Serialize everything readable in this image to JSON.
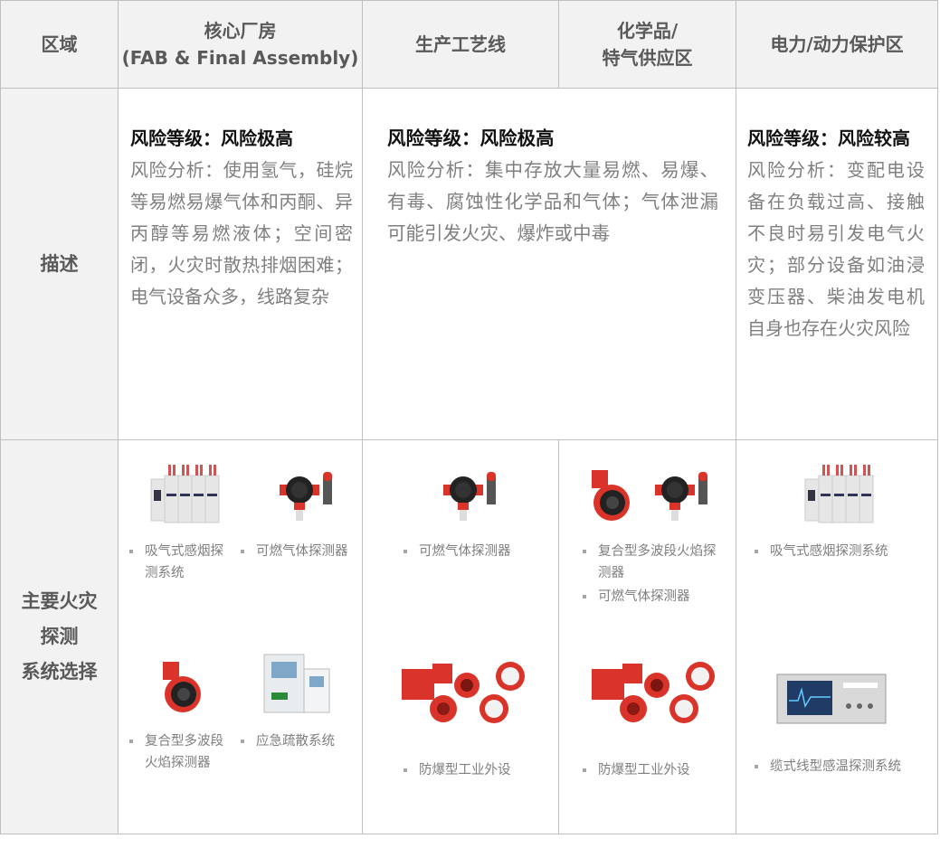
{
  "header": {
    "region": "区域",
    "columns": [
      {
        "title": "核心厂房",
        "subtitle": "(FAB & Final Assembly)"
      },
      {
        "title": "生产工艺线"
      },
      {
        "title": "化学品/",
        "subtitle": "特气供应区"
      },
      {
        "title": "电力/动力保护区"
      }
    ]
  },
  "rows": {
    "description": "描述",
    "detection": "主要火灾\n探测\n系统选择"
  },
  "descriptions": [
    {
      "level": "风险等级：风险极高",
      "analysis": "风险分析：使用氢气，硅烷等易燃易爆气体和丙酮、异丙醇等易燃液体；空间密闭，火灾时散热排烟困难；电气设备众多，线路复杂"
    },
    {
      "level": "风险等级：风险极高",
      "analysis": "风险分析：集中存放大量易燃、易爆、有毒、腐蚀性化学品和气体；气体泄漏可能引发火灾、爆炸或中毒"
    },
    {
      "level": "风险等级：风险较高",
      "analysis": "风险分析：变配电设备在负载过高、接触不良时易引发电气火灾；部分设备如油浸变压器、柴油发电机自身也存在火灾风险"
    }
  ],
  "systems": {
    "aspirating": "吸气式感烟探测系统",
    "gas": "可燃气体探测器",
    "flame": "复合型多波段火焰探测器",
    "evacuation": "应急疏散系统",
    "explosion_proof": "防爆型工业外设",
    "linear_heat": "缆式线型感温探测系统"
  },
  "colors": {
    "header_bg": "#f2f2f2",
    "border": "#bfbfbf",
    "text_gray": "#7f7f7f",
    "device_red": "#d9332a"
  }
}
